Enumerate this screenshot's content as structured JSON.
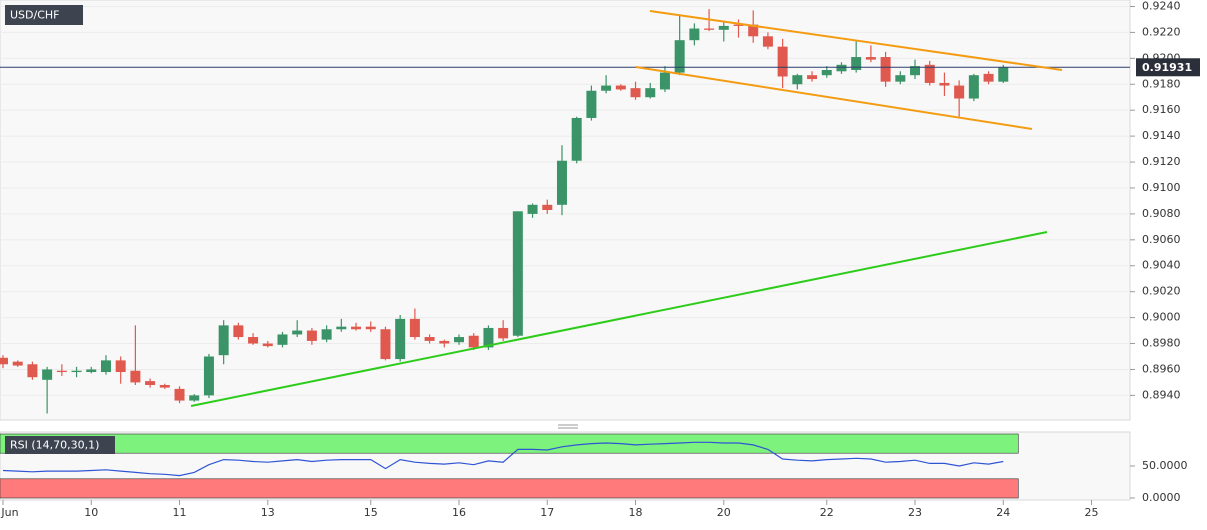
{
  "chart_data": [
    {
      "type": "candlestick",
      "title": "USD/CHF",
      "categories": [
        "Jun",
        null,
        null,
        null,
        null,
        null,
        "10",
        null,
        null,
        null,
        null,
        null,
        "11",
        null,
        null,
        null,
        null,
        null,
        "13",
        null,
        null,
        null,
        null,
        null,
        null,
        "15",
        null,
        null,
        null,
        null,
        null,
        "16",
        null,
        null,
        null,
        null,
        null,
        "17",
        null,
        null,
        null,
        null,
        null,
        "18",
        null,
        null,
        null,
        null,
        null,
        "20",
        null,
        null,
        null,
        null,
        null,
        null,
        "22",
        null,
        null,
        null,
        null,
        null,
        "23",
        null,
        null,
        null,
        null,
        null,
        "24",
        null,
        null,
        null,
        null,
        null,
        "25"
      ],
      "open": [
        0.8969,
        0.8966,
        0.8964,
        0.8952,
        0.8959,
        0.8958,
        0.8958,
        0.8958,
        0.8967,
        0.8959,
        0.8951,
        0.8948,
        0.8945,
        0.8936,
        0.894,
        0.8971,
        0.8994,
        0.8985,
        0.898,
        0.8979,
        0.8987,
        0.899,
        0.8983,
        0.8991,
        0.8993,
        0.8993,
        0.8991,
        0.8968,
        0.8999,
        0.8985,
        0.8982,
        0.8981,
        0.8986,
        0.8977,
        0.8992,
        0.8986,
        0.908,
        0.9087,
        0.9087,
        0.9121,
        0.9154,
        0.9175,
        0.9179,
        0.9177,
        0.917,
        0.9176,
        0.9189,
        0.9214,
        0.9223,
        0.9222,
        0.9226,
        0.9226,
        0.9217,
        0.9209,
        0.918,
        0.9187,
        0.9187,
        0.919,
        0.9191,
        0.9201,
        0.9201,
        0.9182,
        0.9187,
        0.9195,
        0.9181,
        0.9179,
        0.9169,
        0.9188,
        0.9182,
        null,
        null,
        null,
        null,
        null,
        null
      ],
      "high": [
        0.8971,
        0.8967,
        0.8966,
        0.8962,
        0.8964,
        0.8962,
        0.8962,
        0.8971,
        0.897,
        0.8994,
        0.8953,
        0.8949,
        0.8947,
        0.8941,
        0.8972,
        0.8998,
        0.8996,
        0.8988,
        0.8982,
        0.8989,
        0.8998,
        0.8992,
        0.8994,
        0.8999,
        0.8996,
        0.8997,
        0.8993,
        0.9002,
        0.9007,
        0.8987,
        0.8983,
        0.8987,
        0.8988,
        0.8994,
        0.8998,
        0.9082,
        0.9088,
        0.9091,
        0.9133,
        0.9155,
        0.9179,
        0.9187,
        0.918,
        0.9182,
        0.9181,
        0.9194,
        0.9233,
        0.9227,
        0.9238,
        0.9229,
        0.923,
        0.9237,
        0.922,
        0.9215,
        0.9188,
        0.919,
        0.9194,
        0.9197,
        0.9213,
        0.921,
        0.9205,
        0.919,
        0.9199,
        0.9198,
        0.9189,
        0.9183,
        0.9188,
        0.919,
        0.9195,
        null,
        null,
        null,
        null,
        null,
        null
      ],
      "low": [
        0.8961,
        0.8962,
        0.8952,
        0.8926,
        0.8955,
        0.8954,
        0.8957,
        0.8956,
        0.8949,
        0.8948,
        0.8946,
        0.8945,
        0.8934,
        0.8935,
        0.8938,
        0.8964,
        0.8983,
        0.8979,
        0.8977,
        0.8977,
        0.8985,
        0.8979,
        0.8981,
        0.8989,
        0.899,
        0.8989,
        0.8967,
        0.8966,
        0.8983,
        0.898,
        0.8977,
        0.8979,
        0.8975,
        0.8975,
        0.8982,
        0.8985,
        0.9077,
        0.908,
        0.9079,
        0.9119,
        0.9152,
        0.9173,
        0.9175,
        0.9168,
        0.9169,
        0.9174,
        0.9187,
        0.921,
        0.9221,
        0.9213,
        0.9216,
        0.9212,
        0.9207,
        0.9177,
        0.9176,
        0.9182,
        0.9185,
        0.9188,
        0.9189,
        0.9197,
        0.9178,
        0.918,
        0.9184,
        0.9179,
        0.9171,
        0.9155,
        0.9167,
        0.918,
        0.9181,
        null,
        null,
        null,
        null,
        null,
        null
      ],
      "close": [
        0.8964,
        0.8963,
        0.8954,
        0.896,
        0.8958,
        0.8959,
        0.896,
        0.8967,
        0.8958,
        0.895,
        0.8948,
        0.8946,
        0.8936,
        0.894,
        0.897,
        0.8994,
        0.8985,
        0.898,
        0.8978,
        0.8987,
        0.899,
        0.8982,
        0.8991,
        0.8993,
        0.8991,
        0.8991,
        0.8968,
        0.8999,
        0.8985,
        0.8982,
        0.898,
        0.8985,
        0.8977,
        0.8992,
        0.8984,
        0.9082,
        0.9087,
        0.9083,
        0.9121,
        0.9154,
        0.9175,
        0.9179,
        0.9176,
        0.917,
        0.9177,
        0.9189,
        0.9214,
        0.9223,
        0.9222,
        0.9225,
        0.9225,
        0.9217,
        0.9209,
        0.9186,
        0.9187,
        0.9184,
        0.9191,
        0.9195,
        0.9201,
        0.9199,
        0.9182,
        0.9187,
        0.9194,
        0.9181,
        0.9179,
        0.9169,
        0.9187,
        0.9182,
        0.9193,
        null,
        null,
        null,
        null,
        null,
        null
      ],
      "up_color": "#3b9467",
      "down_color": "#e0594f",
      "ylim": [
        0.8921,
        0.9245
      ],
      "yticks": [
        {
          "value": 0.924,
          "label": "0.9240"
        },
        {
          "value": 0.922,
          "label": "0.9220"
        },
        {
          "value": 0.92,
          "label": "0.9200"
        },
        {
          "value": 0.918,
          "label": "0.9180"
        },
        {
          "value": 0.916,
          "label": "0.9160"
        },
        {
          "value": 0.914,
          "label": "0.9140"
        },
        {
          "value": 0.912,
          "label": "0.9120"
        },
        {
          "value": 0.91,
          "label": "0.9100"
        },
        {
          "value": 0.908,
          "label": "0.9080"
        },
        {
          "value": 0.906,
          "label": "0.9060"
        },
        {
          "value": 0.904,
          "label": "0.9040"
        },
        {
          "value": 0.902,
          "label": "0.9020"
        },
        {
          "value": 0.9,
          "label": "0.9000"
        },
        {
          "value": 0.898,
          "label": "0.8980"
        },
        {
          "value": 0.896,
          "label": "0.8960"
        },
        {
          "value": 0.894,
          "label": "0.8940"
        }
      ],
      "last_price": 0.91931,
      "grid": true
    },
    {
      "type": "line",
      "title": "RSI (14,70,30,1)",
      "values": [
        43,
        42,
        41,
        42,
        42,
        42,
        43,
        44,
        42,
        40,
        38,
        37,
        35,
        40,
        52,
        60,
        59,
        57,
        56,
        58,
        60,
        57,
        59,
        60,
        60,
        60,
        46,
        60,
        56,
        54,
        53,
        55,
        52,
        58,
        56,
        76,
        76,
        75,
        80,
        83,
        85,
        86,
        85,
        83,
        84,
        85,
        86,
        87,
        87,
        86,
        86,
        83,
        76,
        61,
        59,
        58,
        60,
        61,
        62,
        61,
        56,
        57,
        59,
        54,
        54,
        50,
        55,
        53,
        57,
        null,
        null,
        null,
        null,
        null,
        null
      ],
      "color": "#2f55d4",
      "ylim": [
        0,
        100
      ],
      "yticks": [
        {
          "value": 50,
          "label": "50.0000"
        },
        {
          "value": 0,
          "label": "0.0000"
        }
      ],
      "zones": [
        {
          "from": 70,
          "to": 100,
          "color": "#7df27d"
        },
        {
          "from": 0,
          "to": 30,
          "color": "#ff7b7b"
        }
      ]
    }
  ]
}
